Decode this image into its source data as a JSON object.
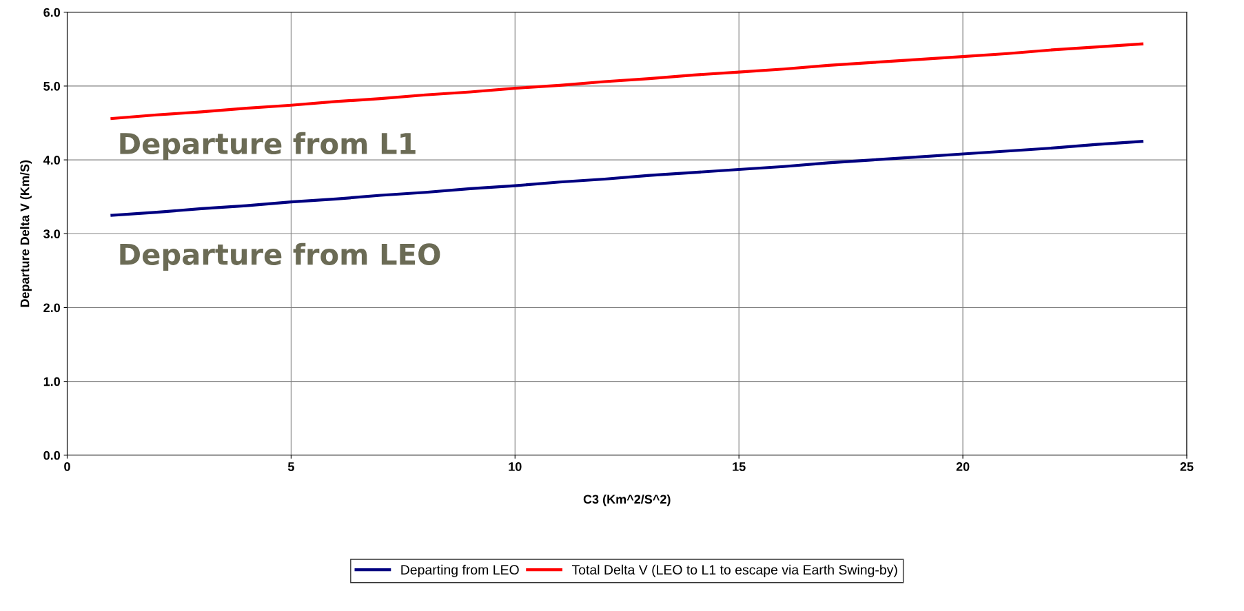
{
  "chart_data": {
    "type": "line",
    "xlabel": "C3 (Km^2/S^2)",
    "ylabel": "Departure Delta V (Km/S)",
    "x": [
      1,
      2,
      3,
      4,
      5,
      6,
      7,
      8,
      9,
      10,
      11,
      12,
      13,
      14,
      15,
      16,
      17,
      18,
      19,
      20,
      21,
      22,
      23,
      24
    ],
    "series": [
      {
        "name": "Departing from LEO",
        "color": "#000080",
        "values": [
          3.25,
          3.29,
          3.34,
          3.38,
          3.43,
          3.47,
          3.52,
          3.56,
          3.61,
          3.65,
          3.7,
          3.74,
          3.79,
          3.83,
          3.87,
          3.91,
          3.96,
          4.0,
          4.04,
          4.08,
          4.12,
          4.16,
          4.21,
          4.25
        ]
      },
      {
        "name": "Total Delta V (LEO to L1 to escape via Earth Swing-by)",
        "color": "#ff0000",
        "values": [
          4.56,
          4.61,
          4.65,
          4.7,
          4.74,
          4.79,
          4.83,
          4.88,
          4.92,
          4.97,
          5.01,
          5.06,
          5.1,
          5.15,
          5.19,
          5.23,
          5.28,
          5.32,
          5.36,
          5.4,
          5.44,
          5.49,
          5.53,
          5.57
        ]
      }
    ],
    "xlim": [
      0,
      25
    ],
    "xticks": [
      0,
      5,
      10,
      15,
      20,
      25
    ],
    "ylim": [
      0,
      6
    ],
    "yticks": [
      {
        "value": 0,
        "label": "0.0"
      },
      {
        "value": 1,
        "label": "1.0"
      },
      {
        "value": 2,
        "label": "2.0"
      },
      {
        "value": 3,
        "label": "3.0"
      },
      {
        "value": 4,
        "label": "4.0"
      },
      {
        "value": 5,
        "label": "5.0"
      },
      {
        "value": 6,
        "label": "6.0"
      }
    ],
    "annotations": [
      "Departure from L1",
      "Departure from LEO"
    ],
    "grid": true,
    "legend": "bottom",
    "marker": "none",
    "line_style": "solid"
  }
}
